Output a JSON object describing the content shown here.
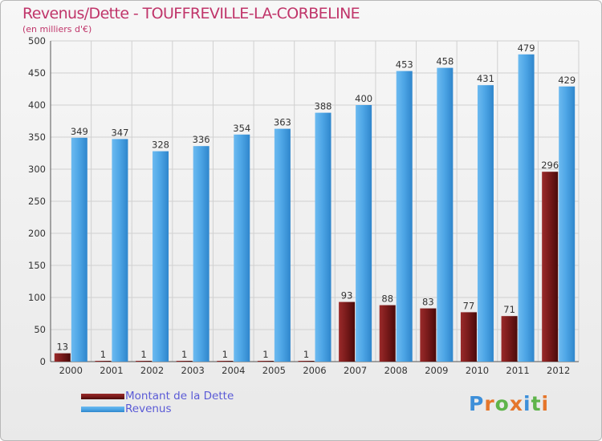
{
  "title": "Revenus/Dette - TOUFFREVILLE-LA-CORBELINE",
  "subtitle": "(en milliers d'€)",
  "logo": {
    "text": "Proxiti",
    "colors": [
      "#3d8fd9",
      "#e5762b",
      "#5eb44a",
      "#e5762b",
      "#3d8fd9",
      "#5eb44a",
      "#e5762b"
    ]
  },
  "colors": {
    "title": "#c0356a",
    "axis_text": "#333333",
    "grid": "#d0d0d0",
    "dette": "#7a1b1b",
    "revenus": "#4ea6e6"
  },
  "chart_data": {
    "type": "bar",
    "categories": [
      "2000",
      "2001",
      "2002",
      "2003",
      "2004",
      "2005",
      "2006",
      "2007",
      "2008",
      "2009",
      "2010",
      "2011",
      "2012"
    ],
    "series": [
      {
        "name": "Montant de la Dette",
        "values": [
          13,
          1,
          1,
          1,
          1,
          1,
          1,
          93,
          88,
          83,
          77,
          71,
          296
        ]
      },
      {
        "name": "Revenus",
        "values": [
          349,
          347,
          328,
          336,
          354,
          363,
          388,
          400,
          453,
          458,
          431,
          479,
          429
        ]
      }
    ],
    "ylim": [
      0,
      500
    ],
    "yticks": [
      0,
      50,
      100,
      150,
      200,
      250,
      300,
      350,
      400,
      450,
      500
    ],
    "grid": true,
    "legend_position": "bottom-left"
  }
}
